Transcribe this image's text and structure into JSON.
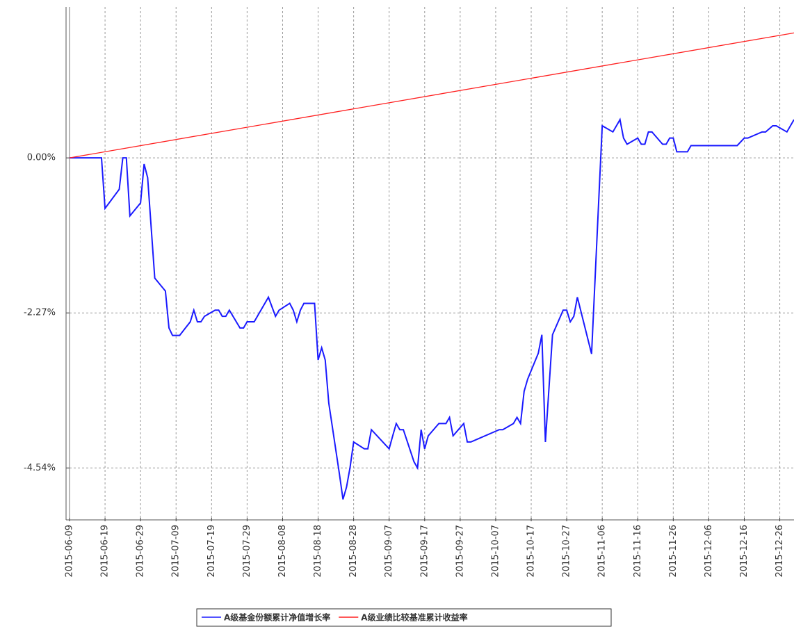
{
  "chart_data": {
    "type": "line",
    "xlim": [
      "2015-06-09",
      "2015-12-30"
    ],
    "xticks": [
      "2015-06-09",
      "2015-06-19",
      "2015-06-29",
      "2015-07-09",
      "2015-07-19",
      "2015-07-29",
      "2015-08-08",
      "2015-08-18",
      "2015-08-28",
      "2015-09-07",
      "2015-09-17",
      "2015-09-27",
      "2015-10-07",
      "2015-10-17",
      "2015-10-27",
      "2015-11-06",
      "2015-11-16",
      "2015-11-26",
      "2015-12-06",
      "2015-12-16",
      "2015-12-26"
    ],
    "ylim": [
      -5.27,
      2.21
    ],
    "yticks": [
      {
        "value": 0,
        "label": "0.00%"
      },
      {
        "value": -2.27,
        "label": "-2.27%"
      },
      {
        "value": -4.54,
        "label": "-4.54%"
      }
    ],
    "grid": true,
    "series": [
      {
        "name": "A级基金份额累计净值增长率",
        "color": "#1a1aff",
        "x": [
          "2015-06-09",
          "2015-06-18",
          "2015-06-19",
          "2015-06-23",
          "2015-06-24",
          "2015-06-25",
          "2015-06-26",
          "2015-06-29",
          "2015-06-30",
          "2015-07-01",
          "2015-07-03",
          "2015-07-06",
          "2015-07-07",
          "2015-07-08",
          "2015-07-10",
          "2015-07-13",
          "2015-07-14",
          "2015-07-15",
          "2015-07-16",
          "2015-07-17",
          "2015-07-20",
          "2015-07-21",
          "2015-07-22",
          "2015-07-23",
          "2015-07-24",
          "2015-07-27",
          "2015-07-28",
          "2015-07-29",
          "2015-07-31",
          "2015-08-04",
          "2015-08-06",
          "2015-08-07",
          "2015-08-10",
          "2015-08-11",
          "2015-08-12",
          "2015-08-13",
          "2015-08-14",
          "2015-08-17",
          "2015-08-18",
          "2015-08-19",
          "2015-08-20",
          "2015-08-21",
          "2015-08-24",
          "2015-08-25",
          "2015-08-26",
          "2015-08-27",
          "2015-08-28",
          "2015-08-31",
          "2015-09-01",
          "2015-09-02",
          "2015-09-07",
          "2015-09-08",
          "2015-09-09",
          "2015-09-10",
          "2015-09-11",
          "2015-09-14",
          "2015-09-15",
          "2015-09-16",
          "2015-09-17",
          "2015-09-18",
          "2015-09-21",
          "2015-09-23",
          "2015-09-24",
          "2015-09-25",
          "2015-09-28",
          "2015-09-29",
          "2015-09-30",
          "2015-10-08",
          "2015-10-09",
          "2015-10-12",
          "2015-10-13",
          "2015-10-14",
          "2015-10-15",
          "2015-10-16",
          "2015-10-19",
          "2015-10-20",
          "2015-10-21",
          "2015-10-23",
          "2015-10-26",
          "2015-10-27",
          "2015-10-28",
          "2015-10-29",
          "2015-10-30",
          "2015-11-03",
          "2015-11-05",
          "2015-11-06",
          "2015-11-09",
          "2015-11-11",
          "2015-11-12",
          "2015-11-13",
          "2015-11-16",
          "2015-11-17",
          "2015-11-18",
          "2015-11-19",
          "2015-11-20",
          "2015-11-23",
          "2015-11-24",
          "2015-11-25",
          "2015-11-26",
          "2015-11-27",
          "2015-11-30",
          "2015-12-01",
          "2015-12-14",
          "2015-12-16",
          "2015-12-17",
          "2015-12-21",
          "2015-12-22",
          "2015-12-24",
          "2015-12-25",
          "2015-12-28",
          "2015-12-30"
        ],
        "values": [
          0,
          0,
          -0.74,
          -0.46,
          0,
          0,
          -0.85,
          -0.66,
          -0.09,
          -0.29,
          -1.76,
          -1.95,
          -2.49,
          -2.6,
          -2.6,
          -2.4,
          -2.23,
          -2.4,
          -2.4,
          -2.32,
          -2.23,
          -2.23,
          -2.32,
          -2.32,
          -2.23,
          -2.49,
          -2.49,
          -2.4,
          -2.4,
          -2.04,
          -2.32,
          -2.23,
          -2.13,
          -2.23,
          -2.4,
          -2.23,
          -2.13,
          -2.13,
          -2.96,
          -2.78,
          -2.96,
          -3.59,
          -4.63,
          -5.0,
          -4.82,
          -4.53,
          -4.16,
          -4.26,
          -4.26,
          -3.98,
          -4.26,
          -4.07,
          -3.89,
          -3.98,
          -3.98,
          -4.45,
          -4.54,
          -3.98,
          -4.26,
          -4.07,
          -3.89,
          -3.89,
          -3.8,
          -4.07,
          -3.89,
          -4.16,
          -4.16,
          -3.98,
          -3.98,
          -3.89,
          -3.8,
          -3.89,
          -3.42,
          -3.24,
          -2.86,
          -2.59,
          -4.16,
          -2.59,
          -2.23,
          -2.23,
          -2.4,
          -2.32,
          -2.04,
          -2.87,
          -0.64,
          0.47,
          0.38,
          0.56,
          0.29,
          0.2,
          0.29,
          0.2,
          0.2,
          0.38,
          0.38,
          0.2,
          0.2,
          0.29,
          0.29,
          0.09,
          0.09,
          0.18,
          0.18,
          0.29,
          0.29,
          0.38,
          0.38,
          0.47,
          0.47,
          0.38,
          0.56
        ]
      },
      {
        "name": "A级业绩比较基准累计收益率",
        "color": "#ff2020",
        "x": [
          "2015-06-09",
          "2015-12-30"
        ],
        "values": [
          0,
          1.83
        ]
      }
    ]
  }
}
